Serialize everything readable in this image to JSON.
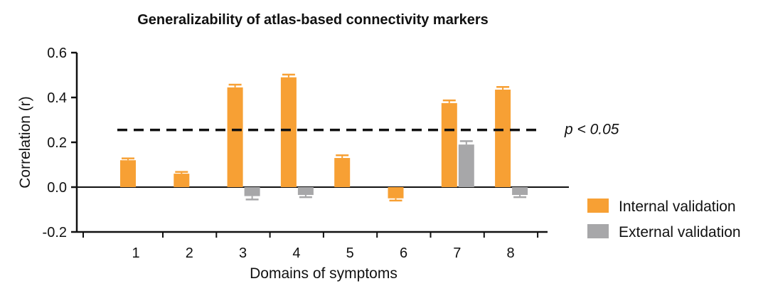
{
  "chart_data": {
    "type": "bar",
    "title": "Generalizability of atlas-based connectivity markers",
    "xlabel": "Domains of symptoms",
    "ylabel": "Correlation (r)",
    "ylim": [
      -0.2,
      0.6
    ],
    "yticks": [
      "-0.2",
      "0.0",
      "0.2",
      "0.4",
      "0.6"
    ],
    "categories": [
      "1",
      "2",
      "3",
      "4",
      "5",
      "6",
      "7",
      "8"
    ],
    "series": [
      {
        "name": "Internal validation",
        "color": "#F7A034",
        "values": [
          0.12,
          0.06,
          0.445,
          0.49,
          0.13,
          -0.05,
          0.375,
          0.435
        ],
        "errors": [
          0.008,
          0.008,
          0.012,
          0.012,
          0.012,
          0.01,
          0.012,
          0.012
        ]
      },
      {
        "name": "External validation",
        "color": "#A7A7A9",
        "values": [
          null,
          null,
          -0.04,
          -0.035,
          null,
          null,
          0.19,
          -0.035
        ],
        "errors": [
          null,
          null,
          0.015,
          0.01,
          null,
          null,
          0.015,
          0.01
        ]
      }
    ],
    "reference_line": {
      "value": 0.255,
      "label": "p < 0.05",
      "style": "dashed"
    },
    "legend_position": "bottom-right",
    "grid": false
  }
}
